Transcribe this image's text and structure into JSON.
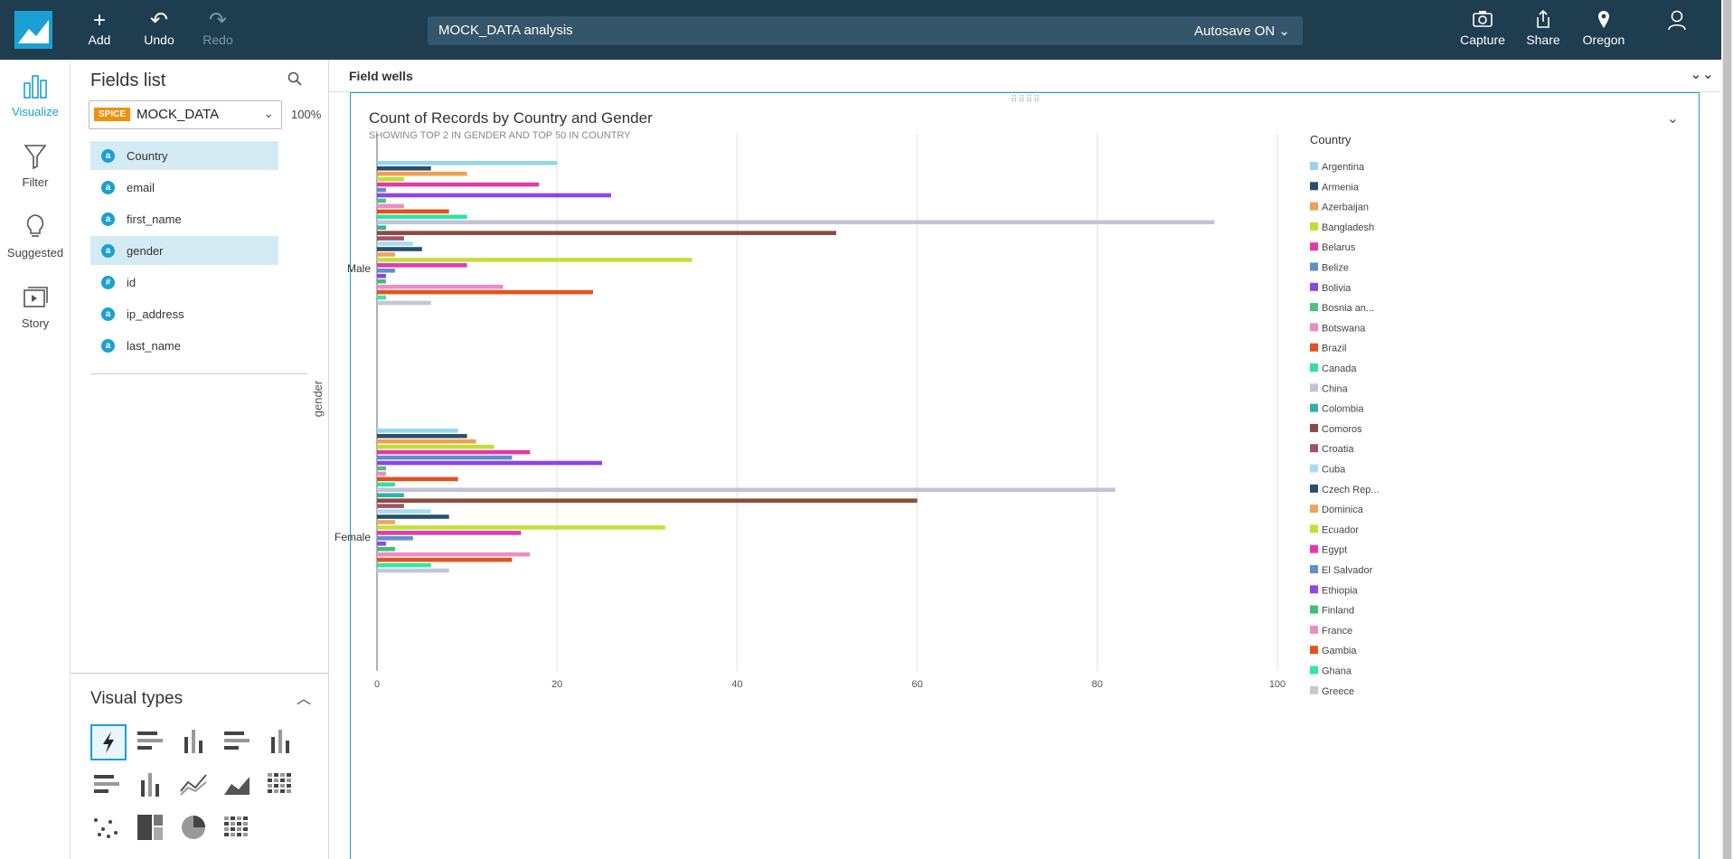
{
  "topbar": {
    "add": "Add",
    "undo": "Undo",
    "redo": "Redo",
    "title": "MOCK_DATA analysis",
    "autosave": "Autosave ON",
    "capture": "Capture",
    "share": "Share",
    "region": "Oregon"
  },
  "rail": {
    "visualize": "Visualize",
    "filter": "Filter",
    "suggested": "Suggested",
    "story": "Story"
  },
  "fields": {
    "title": "Fields list",
    "spice": "SPICE",
    "dataset": "MOCK_DATA",
    "percent": "100%",
    "items": [
      {
        "type": "a",
        "label": "Country",
        "selected": true
      },
      {
        "type": "a",
        "label": "email",
        "selected": false
      },
      {
        "type": "a",
        "label": "first_name",
        "selected": false
      },
      {
        "type": "a",
        "label": "gender",
        "selected": true
      },
      {
        "type": "#",
        "label": "id",
        "selected": false
      },
      {
        "type": "a",
        "label": "ip_address",
        "selected": false
      },
      {
        "type": "a",
        "label": "last_name",
        "selected": false
      }
    ]
  },
  "visual_types": {
    "title": "Visual types"
  },
  "wells": {
    "title": "Field wells"
  },
  "visual": {
    "title": "Count of Records by Country and Gender",
    "subtitle": "SHOWING TOP 2 IN GENDER AND TOP 50 IN COUNTRY"
  },
  "chart_data": {
    "type": "bar",
    "orientation": "horizontal",
    "ylabel": "gender",
    "categories": [
      "Male",
      "Female"
    ],
    "xlim": [
      0,
      100
    ],
    "xticks": [
      0,
      20,
      40,
      60,
      80,
      100
    ],
    "legend_title": "Country",
    "legend_position": "right",
    "series": [
      {
        "name": "Argentina",
        "color": "#93d6ee",
        "values": [
          20,
          9
        ]
      },
      {
        "name": "Armenia",
        "color": "#2c4e6a",
        "values": [
          6,
          10
        ]
      },
      {
        "name": "Azerbaijan",
        "color": "#f0a050",
        "values": [
          10,
          11
        ]
      },
      {
        "name": "Bangladesh",
        "color": "#c2dc34",
        "values": [
          3,
          13
        ]
      },
      {
        "name": "Belarus",
        "color": "#e23aa6",
        "values": [
          18,
          17
        ]
      },
      {
        "name": "Belize",
        "color": "#5a8fca",
        "values": [
          1,
          15
        ]
      },
      {
        "name": "Bolivia",
        "color": "#8e44e8",
        "values": [
          26,
          25
        ]
      },
      {
        "name": "Bosnia an...",
        "color": "#4cc27a",
        "values": [
          1,
          1
        ]
      },
      {
        "name": "Botswana",
        "color": "#ea8cc4",
        "values": [
          3,
          1
        ]
      },
      {
        "name": "Brazil",
        "color": "#e2501e",
        "values": [
          8,
          9
        ]
      },
      {
        "name": "Canada",
        "color": "#2ee3a0",
        "values": [
          10,
          2
        ]
      },
      {
        "name": "China",
        "color": "#c3c3d6",
        "values": [
          93,
          82
        ]
      },
      {
        "name": "Colombia",
        "color": "#2fb0b0",
        "values": [
          1,
          3
        ]
      },
      {
        "name": "Comoros",
        "color": "#8c4a3c",
        "values": [
          51,
          60
        ]
      },
      {
        "name": "Croatia",
        "color": "#a05468",
        "values": [
          3,
          3
        ]
      },
      {
        "name": "Cuba",
        "color": "#a8dcf0",
        "values": [
          4,
          6
        ]
      },
      {
        "name": "Czech Rep...",
        "color": "#25506e",
        "values": [
          5,
          8
        ]
      },
      {
        "name": "Dominica",
        "color": "#f0a45a",
        "values": [
          2,
          2
        ]
      },
      {
        "name": "Ecuador",
        "color": "#c5df3a",
        "values": [
          35,
          32
        ]
      },
      {
        "name": "Egypt",
        "color": "#e33bab",
        "values": [
          10,
          16
        ]
      },
      {
        "name": "El Salvador",
        "color": "#5f8fcc",
        "values": [
          2,
          4
        ]
      },
      {
        "name": "Ethiopia",
        "color": "#8e45ea",
        "values": [
          1,
          1
        ]
      },
      {
        "name": "Finland",
        "color": "#3fbf77",
        "values": [
          1,
          2
        ]
      },
      {
        "name": "France",
        "color": "#ec8dc6",
        "values": [
          14,
          17
        ]
      },
      {
        "name": "Gambia",
        "color": "#e3541f",
        "values": [
          24,
          15
        ]
      },
      {
        "name": "Ghana",
        "color": "#33e6a4",
        "values": [
          1,
          6
        ]
      },
      {
        "name": "Greece",
        "color": "#c5c5d8",
        "values": [
          6,
          8
        ]
      }
    ]
  }
}
